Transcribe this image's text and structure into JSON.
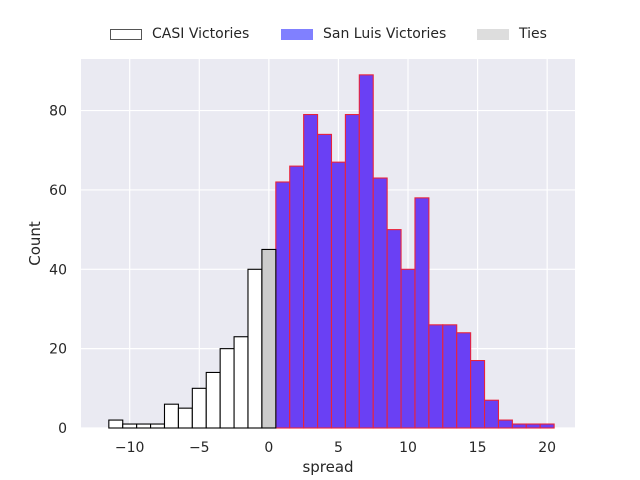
{
  "chart_data": {
    "type": "bar",
    "title": "",
    "xlabel": "spread",
    "ylabel": "Count",
    "xlim": [
      -13.5,
      22.0
    ],
    "ylim": [
      0,
      93
    ],
    "xticks": [
      -10,
      -5,
      0,
      5,
      10,
      15,
      20
    ],
    "yticks": [
      0,
      20,
      40,
      60,
      80
    ],
    "bin_width": 1,
    "series": [
      {
        "name": "CASI Victories",
        "fill": "#ffffff",
        "edge": "#000000",
        "bins": [
          {
            "x": -11,
            "count": 2
          },
          {
            "x": -10,
            "count": 1
          },
          {
            "x": -9,
            "count": 1
          },
          {
            "x": -8,
            "count": 1
          },
          {
            "x": -7,
            "count": 6
          },
          {
            "x": -6,
            "count": 5
          },
          {
            "x": -5,
            "count": 10
          },
          {
            "x": -4,
            "count": 14
          },
          {
            "x": -3,
            "count": 20
          },
          {
            "x": -2,
            "count": 23
          },
          {
            "x": -1,
            "count": 40
          }
        ]
      },
      {
        "name": "San Luis Victories",
        "fill": "#6a40f4",
        "edge": "#e8233c",
        "legend_fill": "#8080ff",
        "bins": [
          {
            "x": 1,
            "count": 62
          },
          {
            "x": 2,
            "count": 66
          },
          {
            "x": 3,
            "count": 79
          },
          {
            "x": 4,
            "count": 74
          },
          {
            "x": 5,
            "count": 67
          },
          {
            "x": 6,
            "count": 79
          },
          {
            "x": 7,
            "count": 89
          },
          {
            "x": 8,
            "count": 63
          },
          {
            "x": 9,
            "count": 50
          },
          {
            "x": 10,
            "count": 40
          },
          {
            "x": 11,
            "count": 58
          },
          {
            "x": 12,
            "count": 26
          },
          {
            "x": 13,
            "count": 26
          },
          {
            "x": 14,
            "count": 24
          },
          {
            "x": 15,
            "count": 17
          },
          {
            "x": 16,
            "count": 7
          },
          {
            "x": 17,
            "count": 2
          },
          {
            "x": 18,
            "count": 1
          },
          {
            "x": 19,
            "count": 1
          },
          {
            "x": 20,
            "count": 1
          }
        ]
      },
      {
        "name": "Ties",
        "fill": "#cccccc",
        "edge": "#000000",
        "legend_fill": "#dddddd",
        "bins": [
          {
            "x": 0,
            "count": 45
          }
        ]
      }
    ],
    "legend_position": "top-center",
    "grid": true,
    "colors": {
      "plot_bg": "#eaeaf2",
      "grid": "#ffffff",
      "text": "#262626"
    }
  }
}
